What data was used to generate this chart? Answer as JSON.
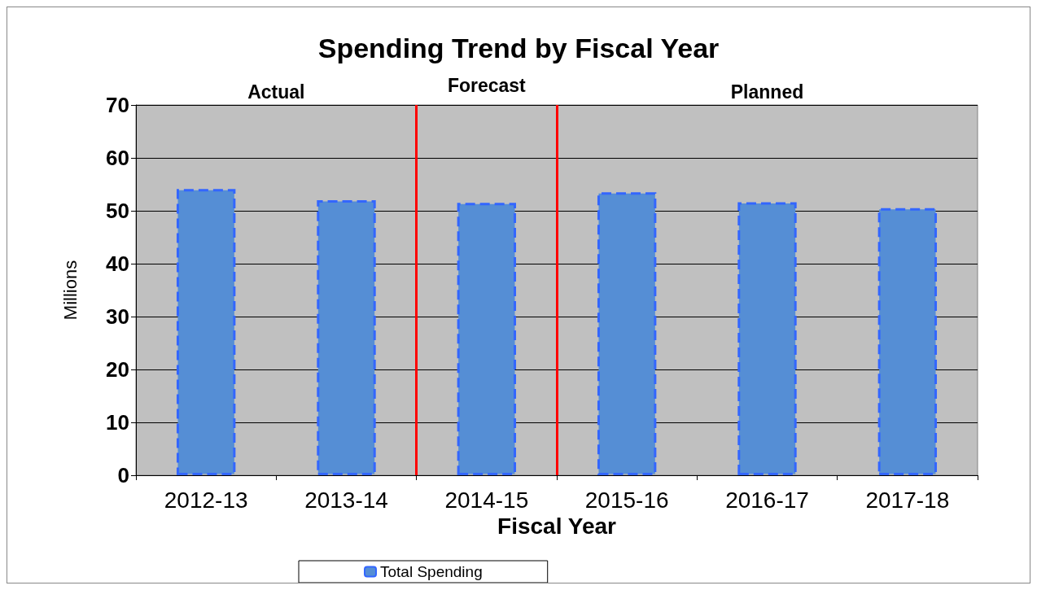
{
  "chart_data": {
    "type": "bar",
    "title": "Spending Trend by Fiscal Year",
    "xlabel": "Fiscal Year",
    "ylabel": "Millions",
    "categories": [
      "2012-13",
      "2013-14",
      "2014-15",
      "2015-16",
      "2016-17",
      "2017-18"
    ],
    "series": [
      {
        "name": "Total Spending",
        "color": "#558ed5",
        "values": [
          54.1,
          52.0,
          51.5,
          53.5,
          51.6,
          50.5
        ]
      }
    ],
    "ylim": [
      0,
      70
    ],
    "yticks": [
      0,
      10,
      20,
      30,
      40,
      50,
      60,
      70
    ],
    "grid": "y",
    "legend": "bottom",
    "annotations": [
      "Actual",
      "Forecast",
      "Planned"
    ]
  }
}
